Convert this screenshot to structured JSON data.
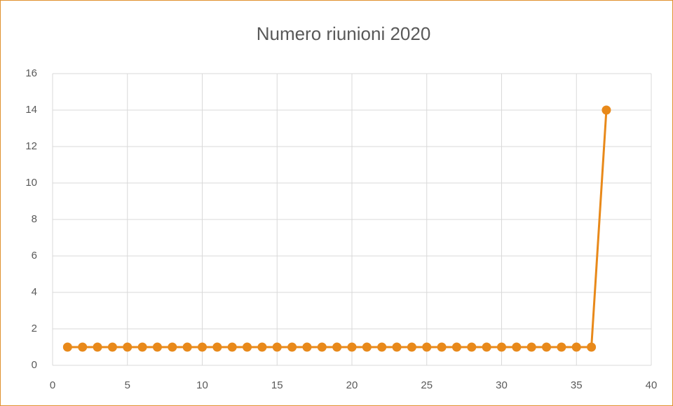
{
  "chart_data": {
    "type": "line",
    "title": "Numero riunioni 2020",
    "series": [
      {
        "color": "#e8891a",
        "x": [
          1,
          2,
          3,
          4,
          5,
          6,
          7,
          8,
          9,
          10,
          11,
          12,
          13,
          14,
          15,
          16,
          17,
          18,
          19,
          20,
          21,
          22,
          23,
          24,
          25,
          26,
          27,
          28,
          29,
          30,
          31,
          32,
          33,
          34,
          35,
          36,
          37
        ],
        "values": [
          1,
          1,
          1,
          1,
          1,
          1,
          1,
          1,
          1,
          1,
          1,
          1,
          1,
          1,
          1,
          1,
          1,
          1,
          1,
          1,
          1,
          1,
          1,
          1,
          1,
          1,
          1,
          1,
          1,
          1,
          1,
          1,
          1,
          1,
          1,
          1,
          14
        ]
      }
    ],
    "xlim": [
      0,
      40
    ],
    "xticks": [
      0,
      5,
      10,
      15,
      20,
      25,
      30,
      35,
      40
    ],
    "ylim": [
      0,
      16
    ],
    "yticks": [
      0,
      2,
      4,
      6,
      8,
      10,
      12,
      14,
      16
    ],
    "grid": true
  }
}
